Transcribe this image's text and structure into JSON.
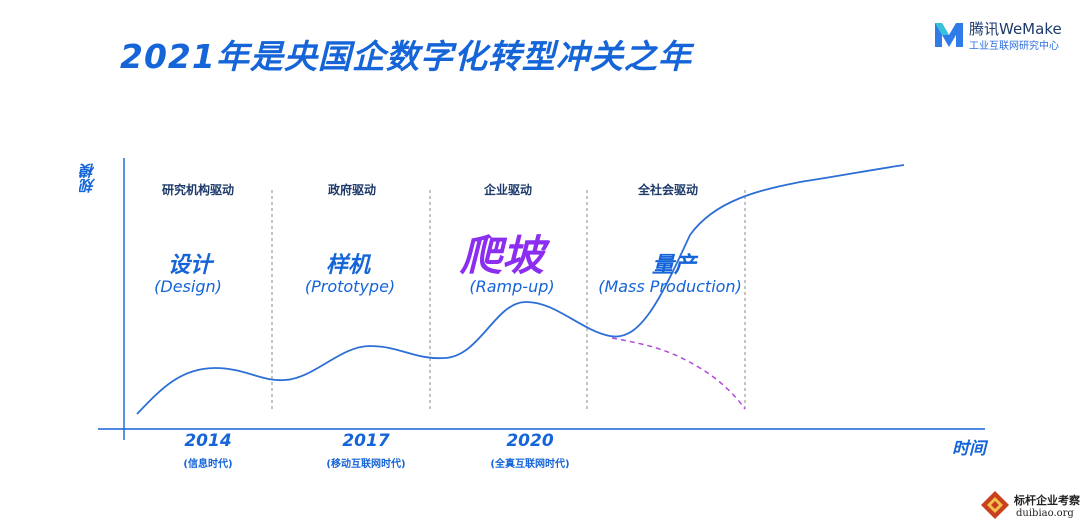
{
  "title": "2021年是央国企数字化转型冲关之年",
  "brand": {
    "name": "腾讯WeMake",
    "subtitle": "工业互联网研究中心",
    "logo_icon": "wemake-logo-icon"
  },
  "axes": {
    "y_label": "规模",
    "x_label": "时间"
  },
  "stages": [
    {
      "driver": "研究机构驱动",
      "name": "设计",
      "name_en": "(Design)"
    },
    {
      "driver": "政府驱动",
      "name": "样机",
      "name_en": "(Prototype)"
    },
    {
      "driver": "企业驱动",
      "name": "爬坡",
      "name_en": "(Ramp-up)",
      "highlight": true
    },
    {
      "driver": "全社会驱动",
      "name": "量产",
      "name_en": "(Mass Production)"
    }
  ],
  "milestones": [
    {
      "year": "2014",
      "era": "(信息时代)"
    },
    {
      "year": "2017",
      "era": "(移动互联网时代)"
    },
    {
      "year": "2020",
      "era": "(全真互联网时代)"
    }
  ],
  "watermark": {
    "name": "标杆企业考察",
    "url": "duibiao.org",
    "logo_icon": "diamond-logo-icon"
  },
  "colors": {
    "primary": "#1565d8",
    "highlight": "#8b2ef0",
    "dashed_curve": "#b04ad8",
    "divider": "#8a8a8a"
  }
}
